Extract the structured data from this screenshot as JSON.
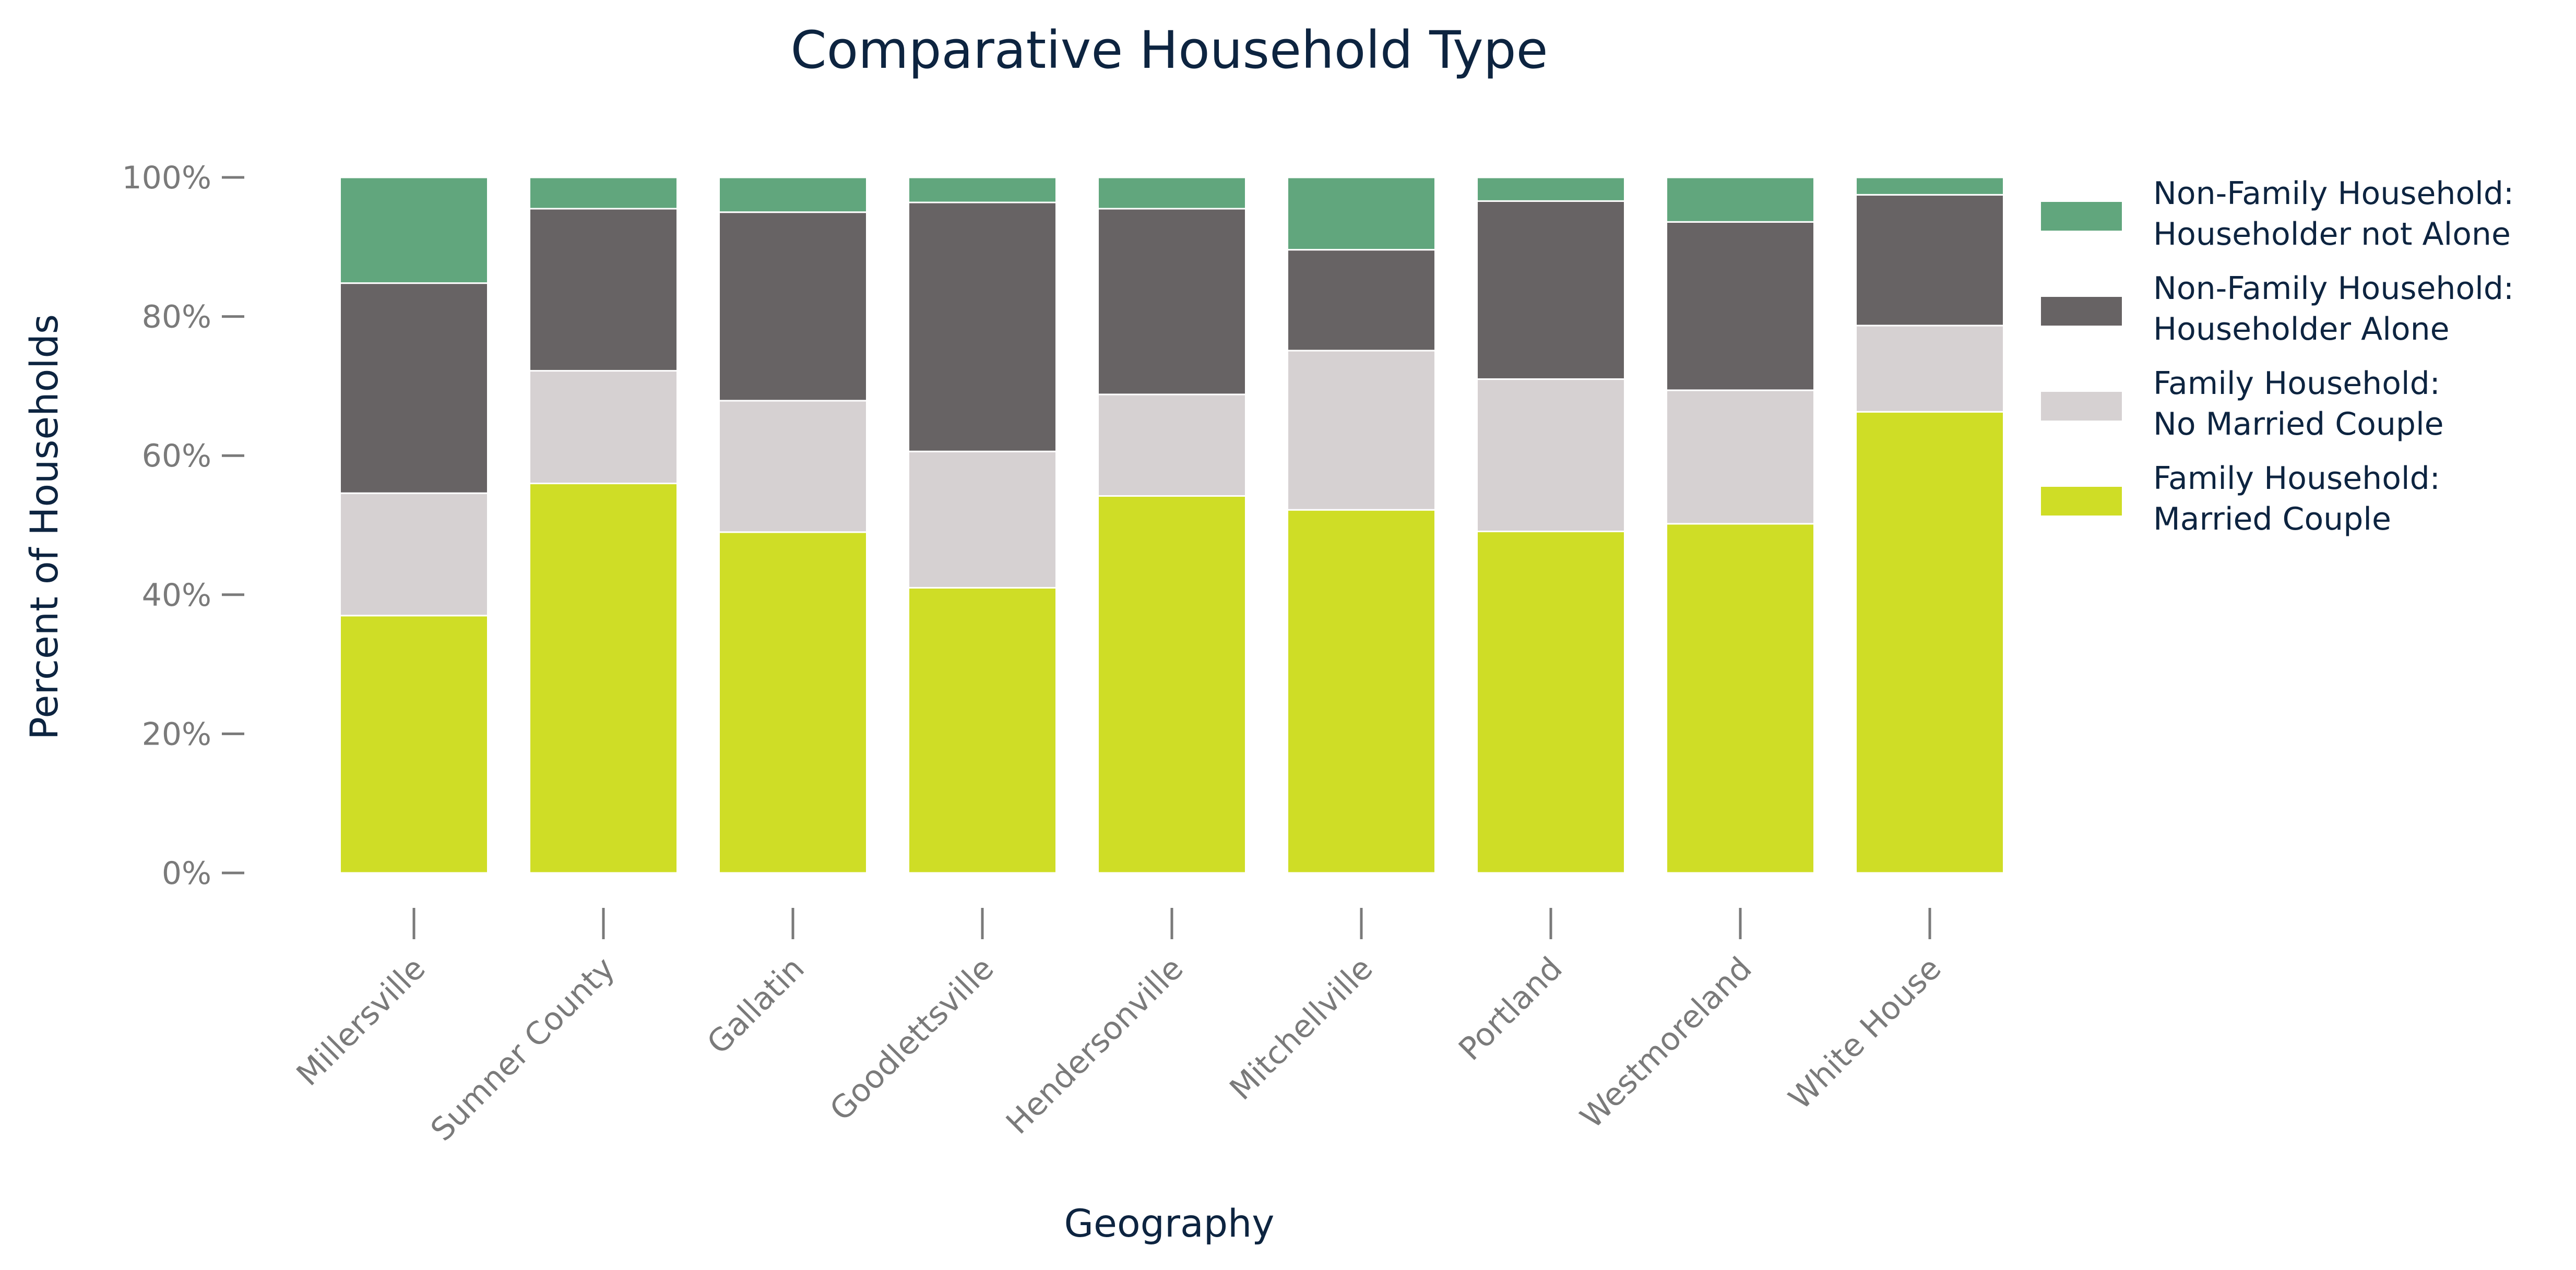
{
  "chart_data": {
    "type": "bar",
    "stacked": true,
    "title": "Comparative Household Type",
    "xlabel": "Geography",
    "ylabel": "Percent of Households",
    "ylim": [
      0,
      100
    ],
    "y_ticks": [
      0,
      20,
      40,
      60,
      80,
      100
    ],
    "y_tick_labels": [
      "0%",
      "20%",
      "40%",
      "60%",
      "80%",
      "100%"
    ],
    "grid": false,
    "legend_position": "right",
    "categories": [
      "Millersville",
      "Sumner County",
      "Gallatin",
      "Goodlettsville",
      "Hendersonville",
      "Mitchellville",
      "Portland",
      "Westmoreland",
      "White House"
    ],
    "series": [
      {
        "name": "Family Household: Married Couple",
        "legend_lines": [
          "Family Household:",
          "Married Couple"
        ],
        "color": "#cfdd26",
        "values": [
          37.0,
          56.0,
          49.0,
          41.0,
          54.2,
          52.2,
          49.1,
          50.2,
          66.3
        ]
      },
      {
        "name": "Family Household: No Married Couple",
        "legend_lines": [
          "Family Household:",
          "No Married Couple"
        ],
        "color": "#d6d1d2",
        "values": [
          17.6,
          16.2,
          18.9,
          19.6,
          14.6,
          22.9,
          21.9,
          19.2,
          12.4
        ]
      },
      {
        "name": "Non-Family Household: Householder Alone",
        "legend_lines": [
          "Non-Family Household:",
          "Householder Alone"
        ],
        "color": "#676364",
        "values": [
          30.2,
          23.3,
          27.1,
          35.8,
          26.7,
          14.5,
          25.6,
          24.2,
          18.8
        ]
      },
      {
        "name": "Non-Family Household: Householder not Alone",
        "legend_lines": [
          "Non-Family Household:",
          "Householder not Alone"
        ],
        "color": "#61a67d",
        "values": [
          15.2,
          4.5,
          5.0,
          3.6,
          4.5,
          10.4,
          3.4,
          6.4,
          2.5
        ]
      }
    ]
  }
}
